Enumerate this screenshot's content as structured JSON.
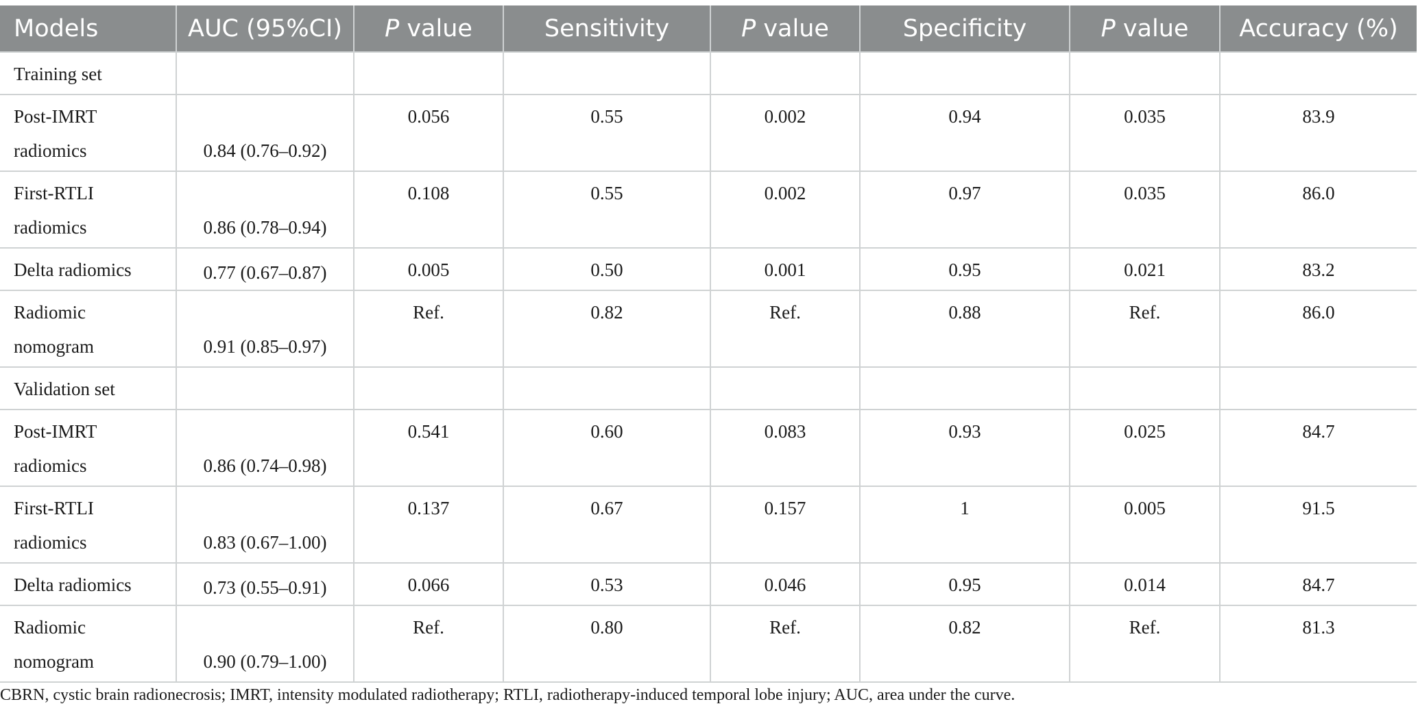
{
  "table": {
    "headers": [
      {
        "pre": "",
        "it": "",
        "post": "Models"
      },
      {
        "pre": "",
        "it": "",
        "post": "AUC (95%CI)"
      },
      {
        "pre": "",
        "it": "P",
        "post": " value"
      },
      {
        "pre": "",
        "it": "",
        "post": "Sensitivity"
      },
      {
        "pre": "",
        "it": "P",
        "post": " value"
      },
      {
        "pre": "",
        "it": "",
        "post": "Specificity"
      },
      {
        "pre": "",
        "it": "P",
        "post": " value"
      },
      {
        "pre": "",
        "it": "",
        "post": "Accuracy (%)"
      }
    ],
    "rows": [
      {
        "kind": "section",
        "label": "Training set"
      },
      {
        "kind": "double",
        "model": "Post-IMRT radiomics",
        "auc": "0.84 (0.76–0.92)",
        "p1": "0.056",
        "sens": "0.55",
        "p2": "0.002",
        "spec": "0.94",
        "p3": "0.035",
        "acc": "83.9"
      },
      {
        "kind": "double",
        "model": "First-RTLI radiomics",
        "auc": "0.86 (0.78–0.94)",
        "p1": "0.108",
        "sens": "0.55",
        "p2": "0.002",
        "spec": "0.97",
        "p3": "0.035",
        "acc": "86.0"
      },
      {
        "kind": "single",
        "model": "Delta radiomics",
        "auc": "0.77 (0.67–0.87)",
        "p1": "0.005",
        "sens": "0.50",
        "p2": "0.001",
        "spec": "0.95",
        "p3": "0.021",
        "acc": "83.2"
      },
      {
        "kind": "double",
        "model": "Radiomic nomogram",
        "auc": "0.91 (0.85–0.97)",
        "p1": "Ref.",
        "sens": "0.82",
        "p2": "Ref.",
        "spec": "0.88",
        "p3": "Ref.",
        "acc": "86.0"
      },
      {
        "kind": "section",
        "label": "Validation set"
      },
      {
        "kind": "double",
        "model": "Post-IMRT radiomics",
        "auc": "0.86 (0.74–0.98)",
        "p1": "0.541",
        "sens": "0.60",
        "p2": "0.083",
        "spec": "0.93",
        "p3": "0.025",
        "acc": "84.7"
      },
      {
        "kind": "double",
        "model": "First-RTLI radiomics",
        "auc": "0.83 (0.67–1.00)",
        "p1": "0.137",
        "sens": "0.67",
        "p2": "0.157",
        "spec": "1",
        "p3": "0.005",
        "acc": "91.5"
      },
      {
        "kind": "single",
        "model": "Delta radiomics",
        "auc": "0.73 (0.55–0.91)",
        "p1": "0.066",
        "sens": "0.53",
        "p2": "0.046",
        "spec": "0.95",
        "p3": "0.014",
        "acc": "84.7"
      },
      {
        "kind": "double",
        "model": "Radiomic nomogram",
        "auc": "0.90 (0.79–1.00)",
        "p1": "Ref.",
        "sens": "0.80",
        "p2": "Ref.",
        "spec": "0.82",
        "p3": "Ref.",
        "acc": "81.3"
      }
    ]
  },
  "footnote": "CBRN, cystic brain radionecrosis; IMRT, intensity modulated radiotherapy; RTLI, radiotherapy-induced temporal lobe injury; AUC, area under the curve.",
  "colors": {
    "header_bg": "#8a8d8e",
    "header_text": "#ffffff",
    "grid": "#cfd2d3",
    "text": "#1a1a1a"
  }
}
